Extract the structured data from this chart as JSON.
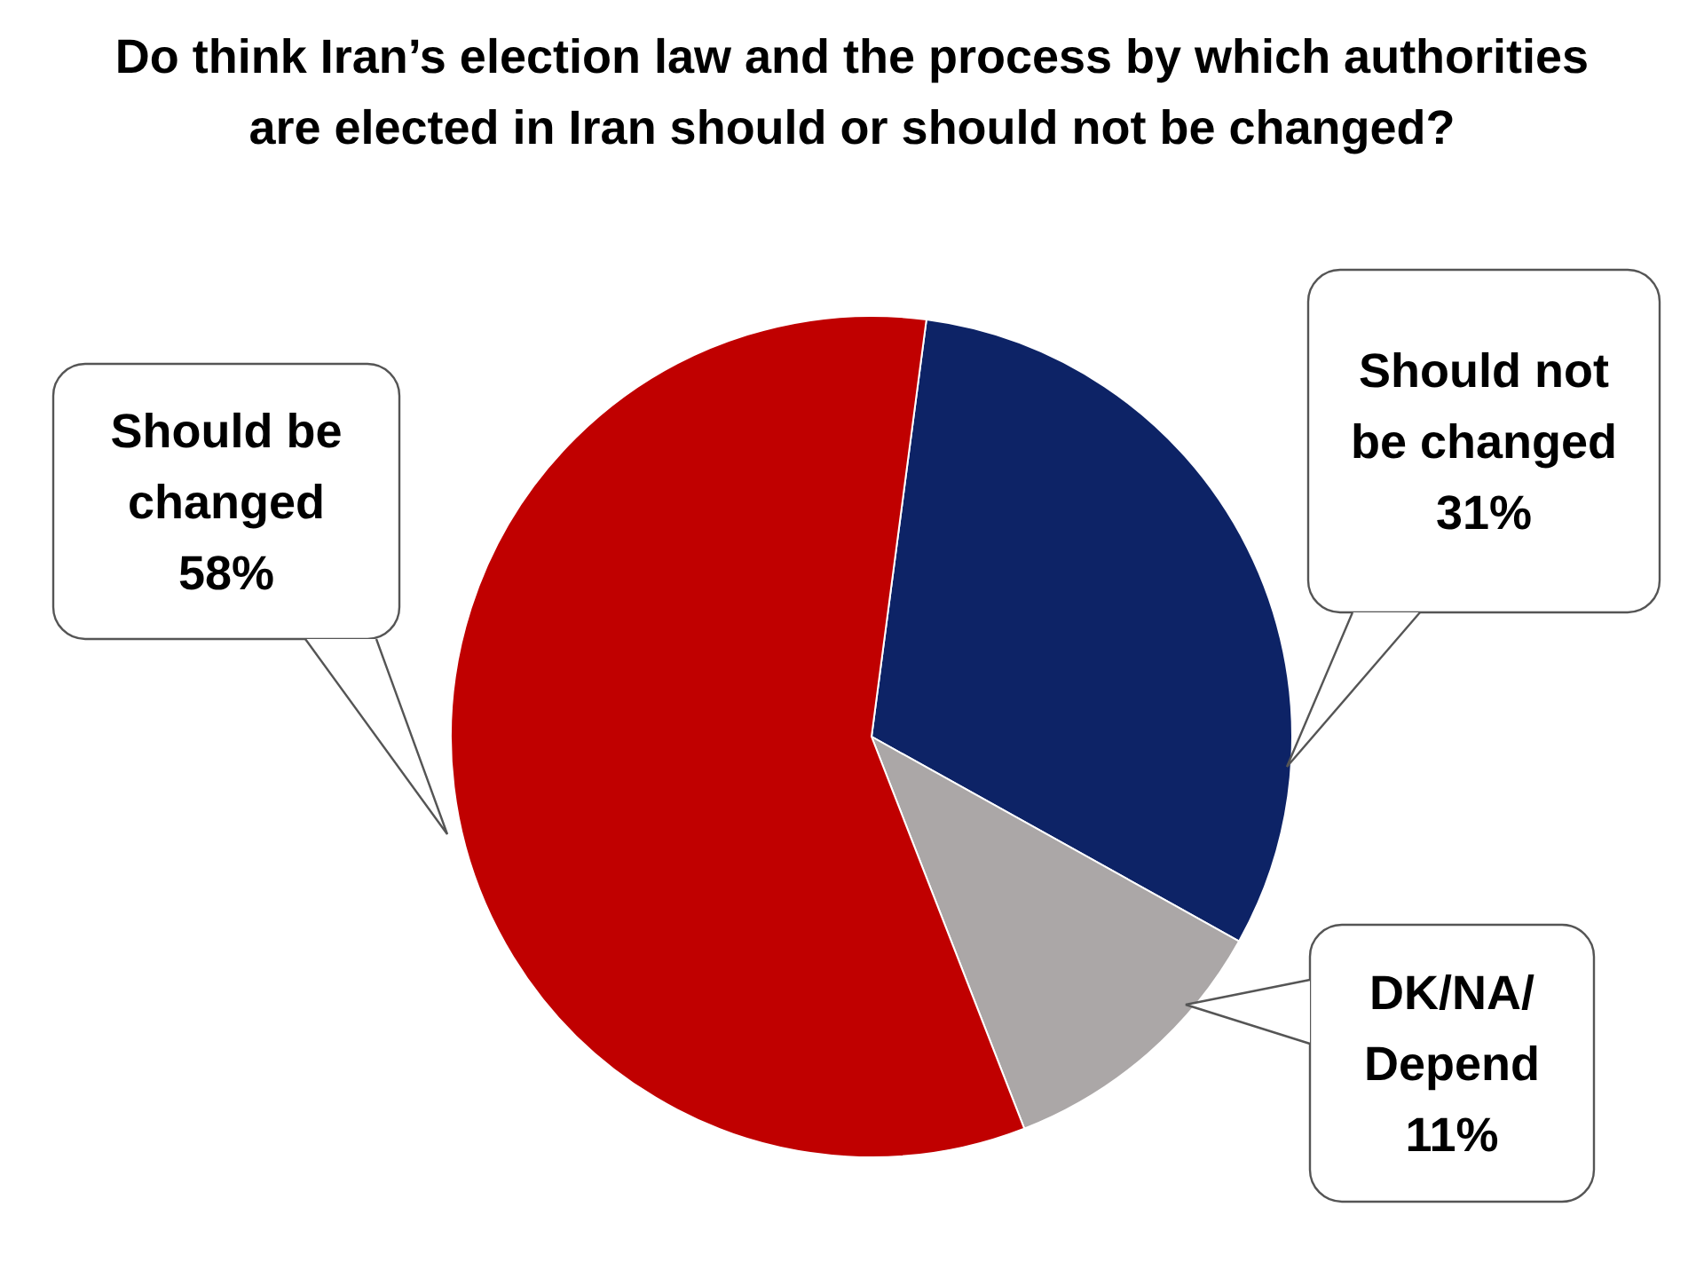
{
  "chart_data": {
    "type": "pie",
    "title": "Do think Iran’s election law and the process by which authorities are elected in Iran should or should not be changed?",
    "categories": [
      "Should not be changed",
      "DK/NA/ Depend",
      "Should be changed"
    ],
    "values": [
      31,
      11,
      58
    ],
    "value_labels": [
      "31%",
      "11%",
      "58%"
    ],
    "colors": [
      "#0d2366",
      "#aba7a7",
      "#c00000"
    ],
    "legend": false
  }
}
